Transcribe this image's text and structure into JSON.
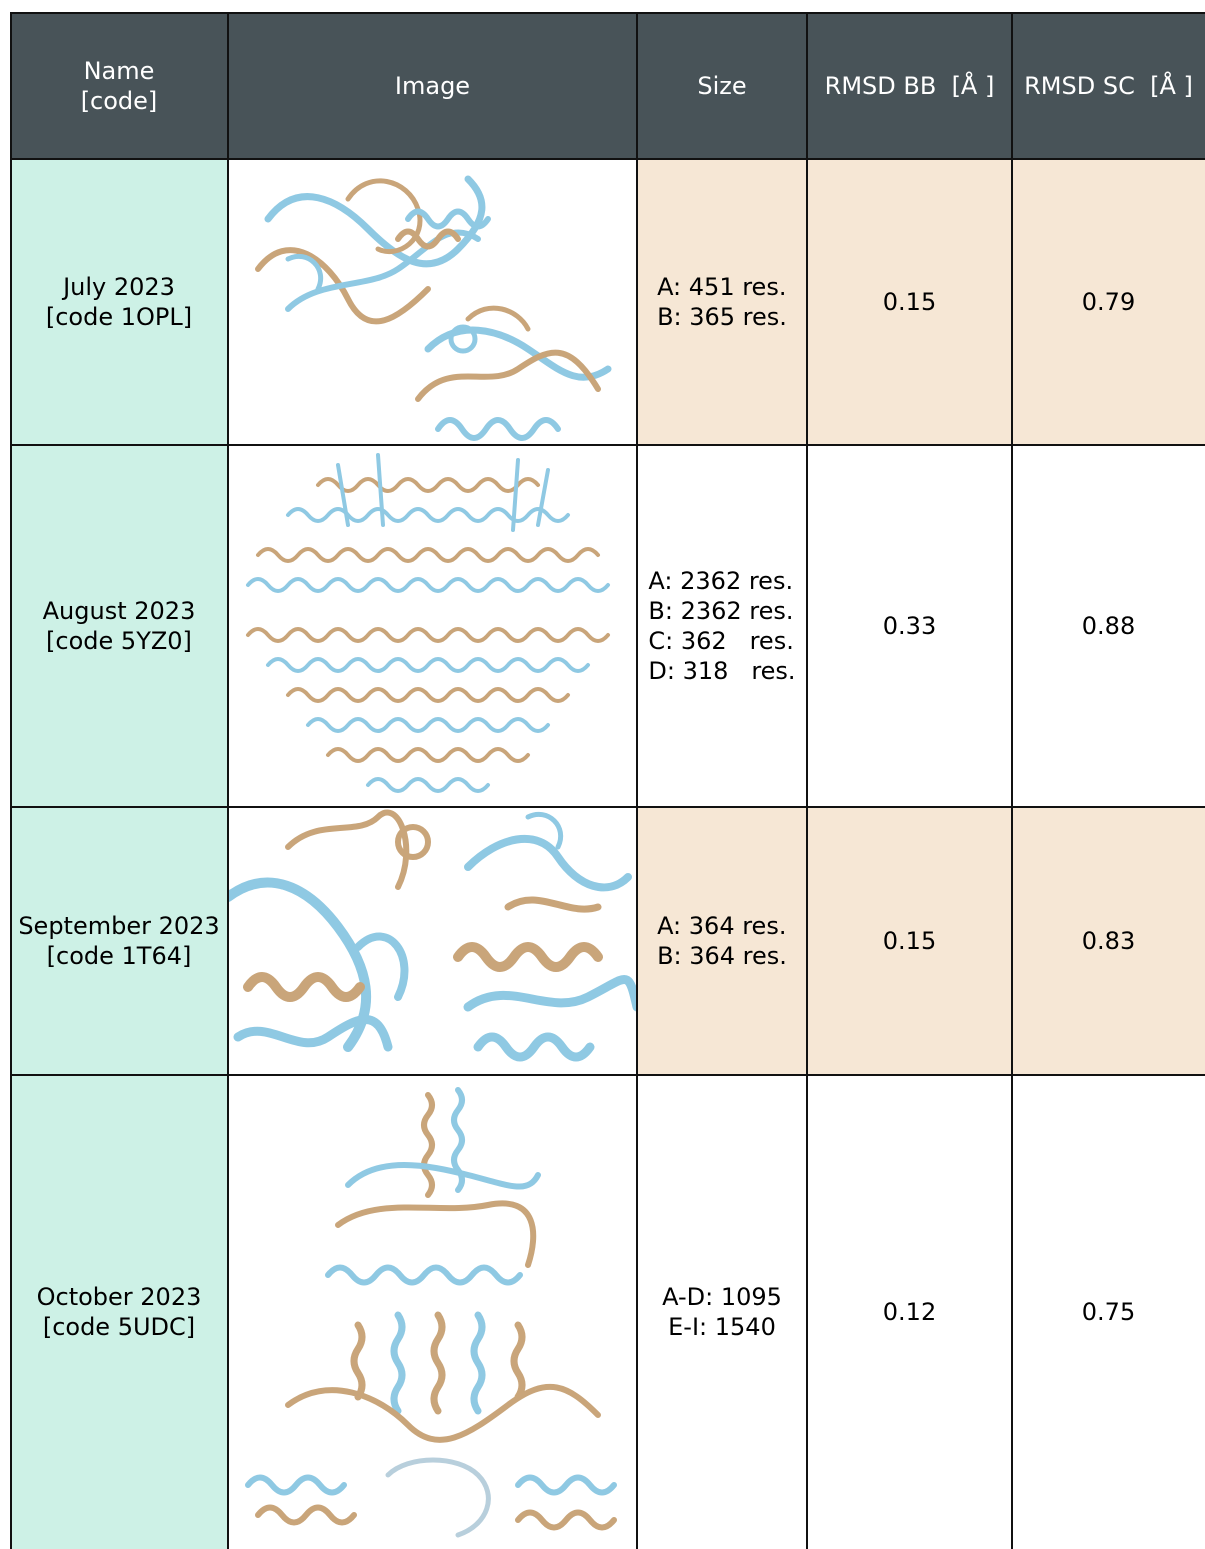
{
  "headers": {
    "name": "Name\n[code]",
    "image": "Image",
    "size": "Size",
    "rmsd_bb": "RMSD BB  [Å ]",
    "rmsd_sc": "RMSD SC  [Å ]"
  },
  "rows": [
    {
      "name": "July 2023\n[code 1OPL]",
      "size": "A: 451 res.\nB: 365 res.",
      "rmsd_bb": "0.15",
      "rmsd_sc": "0.79"
    },
    {
      "name": "August 2023\n[code 5YZ0]",
      "size": "A: 2362 res.\nB: 2362 res.\nC: 362   res.\nD: 318   res.",
      "rmsd_bb": "0.33",
      "rmsd_sc": "0.88"
    },
    {
      "name": "September 2023\n[code 1T64]",
      "size": "A: 364 res.\nB: 364 res.",
      "rmsd_bb": "0.15",
      "rmsd_sc": "0.83"
    },
    {
      "name": "October 2023\n[code 5UDC]",
      "size": "A-D: 1095\nE-I: 1540",
      "rmsd_bb": "0.12",
      "rmsd_sc": "0.75"
    }
  ],
  "colors": {
    "header_bg": "#485358",
    "name_bg": "#cdf1e6",
    "highlight_bg": "#f6e7d5",
    "ribbon_blue": "#8fc9e3",
    "ribbon_tan": "#c9a57a"
  }
}
